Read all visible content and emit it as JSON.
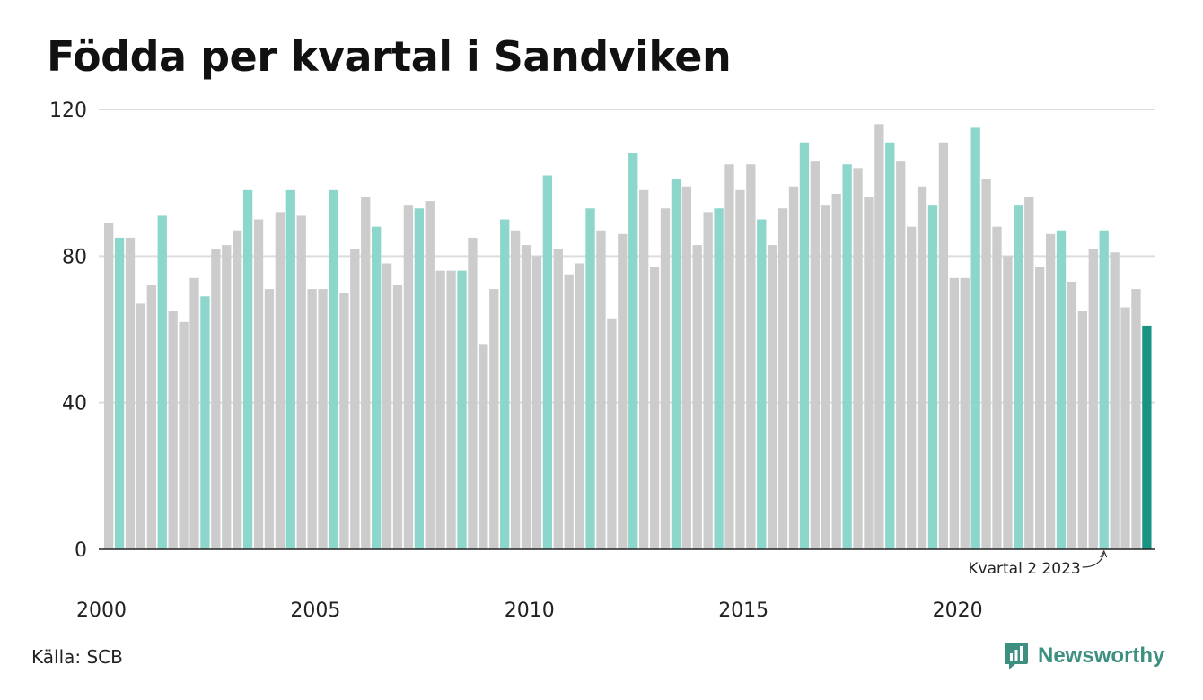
{
  "chart_data": {
    "type": "bar",
    "title": "Födda per kvartal i Sandviken",
    "ylim": [
      0,
      120
    ],
    "yticks": [
      0,
      40,
      80,
      120
    ],
    "xtick_labels": [
      "2000",
      "2005",
      "2010",
      "2015",
      "2020"
    ],
    "start_year": 2000,
    "grid": true,
    "values": [
      89,
      85,
      85,
      67,
      72,
      91,
      65,
      62,
      74,
      69,
      82,
      83,
      87,
      98,
      90,
      71,
      92,
      98,
      91,
      71,
      71,
      98,
      70,
      82,
      96,
      88,
      78,
      72,
      94,
      93,
      95,
      76,
      76,
      76,
      85,
      56,
      71,
      90,
      87,
      83,
      80,
      102,
      82,
      75,
      78,
      93,
      87,
      63,
      86,
      108,
      98,
      77,
      93,
      101,
      99,
      83,
      92,
      93,
      105,
      98,
      105,
      90,
      83,
      93,
      99,
      111,
      106,
      94,
      97,
      105,
      104,
      96,
      116,
      111,
      106,
      88,
      99,
      94,
      111,
      74,
      74,
      115,
      101,
      88,
      80,
      94,
      96,
      77,
      86,
      87,
      73,
      65,
      82,
      87,
      81,
      66,
      71,
      61
    ],
    "highlight_quarter": 2,
    "annotation": "Kvartal 2 2023",
    "colors": {
      "bar": "#cccccc",
      "highlight": "#8dd6cc",
      "latest": "#1a9482",
      "grid": "#dddddd",
      "axis": "#222222"
    }
  },
  "source": "Källa: SCB",
  "brand": {
    "name": "Newsworthy",
    "color": "#3d8f7f"
  }
}
